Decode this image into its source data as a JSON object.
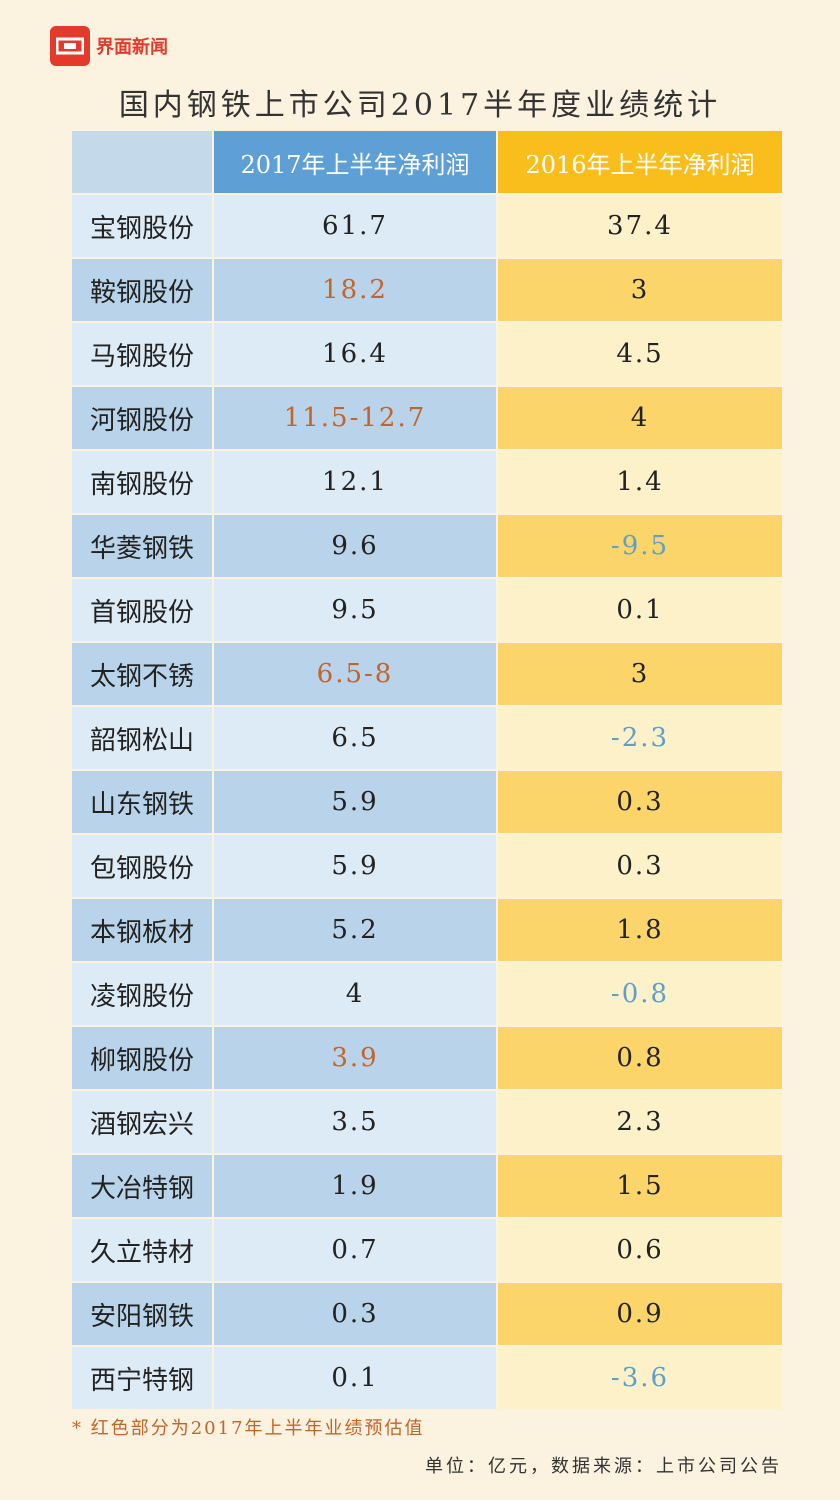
{
  "brand": {
    "name": "界面新闻"
  },
  "chart_data": {
    "type": "table",
    "title": "国内钢铁上市公司2017半年度业绩统计",
    "columns": [
      "",
      "2017年上半年净利润",
      "2016年上半年净利润"
    ],
    "rows": [
      {
        "company": "宝钢股份",
        "y2017": "61.7",
        "y2016": "37.4",
        "est": false,
        "neg": false
      },
      {
        "company": "鞍钢股份",
        "y2017": "18.2",
        "y2016": "3",
        "est": true,
        "neg": false
      },
      {
        "company": "马钢股份",
        "y2017": "16.4",
        "y2016": "4.5",
        "est": false,
        "neg": false
      },
      {
        "company": "河钢股份",
        "y2017": "11.5-12.7",
        "y2016": "4",
        "est": true,
        "neg": false
      },
      {
        "company": "南钢股份",
        "y2017": "12.1",
        "y2016": "1.4",
        "est": false,
        "neg": false
      },
      {
        "company": "华菱钢铁",
        "y2017": "9.6",
        "y2016": "-9.5",
        "est": false,
        "neg": true
      },
      {
        "company": "首钢股份",
        "y2017": "9.5",
        "y2016": "0.1",
        "est": false,
        "neg": false
      },
      {
        "company": "太钢不锈",
        "y2017": "6.5-8",
        "y2016": "3",
        "est": true,
        "neg": false
      },
      {
        "company": "韶钢松山",
        "y2017": "6.5",
        "y2016": "-2.3",
        "est": false,
        "neg": true
      },
      {
        "company": "山东钢铁",
        "y2017": "5.9",
        "y2016": "0.3",
        "est": false,
        "neg": false
      },
      {
        "company": "包钢股份",
        "y2017": "5.9",
        "y2016": "0.3",
        "est": false,
        "neg": false
      },
      {
        "company": "本钢板材",
        "y2017": "5.2",
        "y2016": "1.8",
        "est": false,
        "neg": false
      },
      {
        "company": "凌钢股份",
        "y2017": "4",
        "y2016": "-0.8",
        "est": false,
        "neg": true
      },
      {
        "company": "柳钢股份",
        "y2017": "3.9",
        "y2016": "0.8",
        "est": true,
        "neg": false
      },
      {
        "company": "酒钢宏兴",
        "y2017": "3.5",
        "y2016": "2.3",
        "est": false,
        "neg": false
      },
      {
        "company": "大冶特钢",
        "y2017": "1.9",
        "y2016": "1.5",
        "est": false,
        "neg": false
      },
      {
        "company": "久立特材",
        "y2017": "0.7",
        "y2016": "0.6",
        "est": false,
        "neg": false
      },
      {
        "company": "安阳钢铁",
        "y2017": "0.3",
        "y2016": "0.9",
        "est": false,
        "neg": false
      },
      {
        "company": "西宁特钢",
        "y2017": "0.1",
        "y2016": "-3.6",
        "est": false,
        "neg": true
      }
    ],
    "colors": {
      "estimate_text": "#c2652a",
      "negative_text": "#5f9fcc",
      "header_2017": "#5e9fd5",
      "header_2016": "#f9bd1c"
    }
  },
  "footnote": "* 红色部分为2017年上半年业绩预估值",
  "source": "单位：亿元，数据来源：上市公司公告"
}
